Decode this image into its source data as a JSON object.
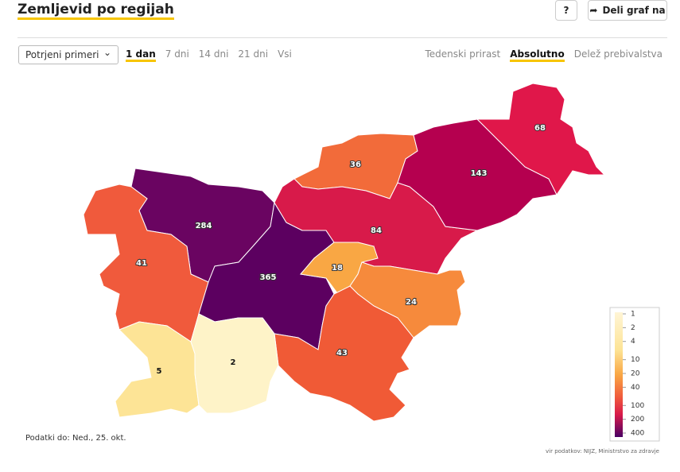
{
  "header": {
    "title": "Zemljevid po regijah",
    "help_button": "?",
    "share_button": "Deli graf na"
  },
  "controls": {
    "dropdown": "Potrjeni primeri",
    "periods": [
      "1 dan",
      "7 dni",
      "14 dni",
      "21 dni",
      "Vsi"
    ],
    "measures": [
      "Tedenski prirast",
      "Absolutno",
      "Delež prebivalstva"
    ]
  },
  "map": {
    "regions": [
      {
        "value": 284,
        "color": "#6a0461"
      },
      {
        "value": 41,
        "color": "#f05a3c"
      },
      {
        "value": 365,
        "color": "#5c0060"
      },
      {
        "value": 36,
        "color": "#f26b3a"
      },
      {
        "value": 84,
        "color": "#d81a4a"
      },
      {
        "value": 143,
        "color": "#b5004f"
      },
      {
        "value": 68,
        "color": "#e0174a"
      },
      {
        "value": 18,
        "color": "#f9a744"
      },
      {
        "value": 24,
        "color": "#f68a3c"
      },
      {
        "value": 43,
        "color": "#f05a36"
      },
      {
        "value": 5,
        "color": "#fde496"
      },
      {
        "value": 2,
        "color": "#fef3c8"
      }
    ],
    "legend": {
      "scale": "log",
      "range": [
        1,
        400
      ],
      "ticks": [
        1,
        2,
        4,
        10,
        20,
        40,
        100,
        200,
        400
      ]
    }
  },
  "footer": {
    "date": "Podatki do: Ned., 25. okt.",
    "source": "vir podatkov: NIJZ, Ministrstvo za zdravje"
  }
}
